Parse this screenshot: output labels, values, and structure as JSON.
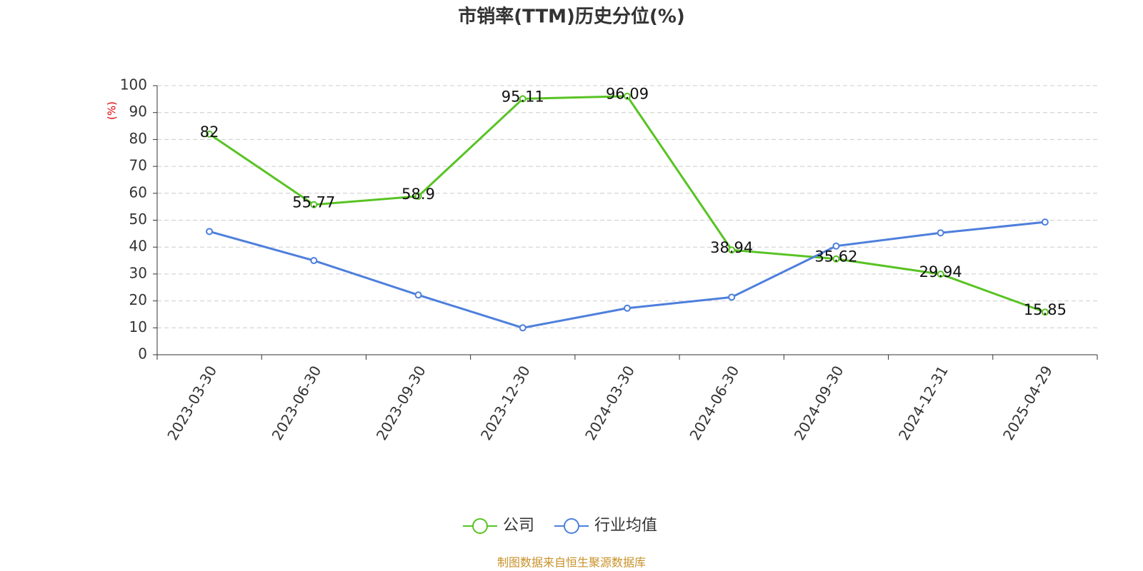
{
  "chart_data": {
    "type": "line",
    "title": "市销率(TTM)历史分位(%)",
    "y_label": "(%)",
    "categories": [
      "2023-03-30",
      "2023-06-30",
      "2023-09-30",
      "2023-12-30",
      "2024-03-30",
      "2024-06-30",
      "2024-09-30",
      "2024-12-31",
      "2025-04-29"
    ],
    "series": [
      {
        "name": "公司",
        "color": "#58c323",
        "values": [
          82,
          55.77,
          58.9,
          95.11,
          96.09,
          38.94,
          35.62,
          29.94,
          15.85
        ],
        "show_labels": true
      },
      {
        "name": "行业均值",
        "color": "#4e7fdc",
        "values": [
          45.8,
          35.0,
          22.2,
          10.0,
          17.3,
          21.4,
          40.4,
          45.3,
          49.3
        ],
        "show_labels": false
      }
    ],
    "ylim": [
      0,
      100
    ],
    "yticks": [
      0,
      10,
      20,
      30,
      40,
      50,
      60,
      70,
      80,
      90,
      100
    ],
    "grid": true,
    "legend": "bottom",
    "source": "制图数据来自恒生聚源数据库"
  }
}
